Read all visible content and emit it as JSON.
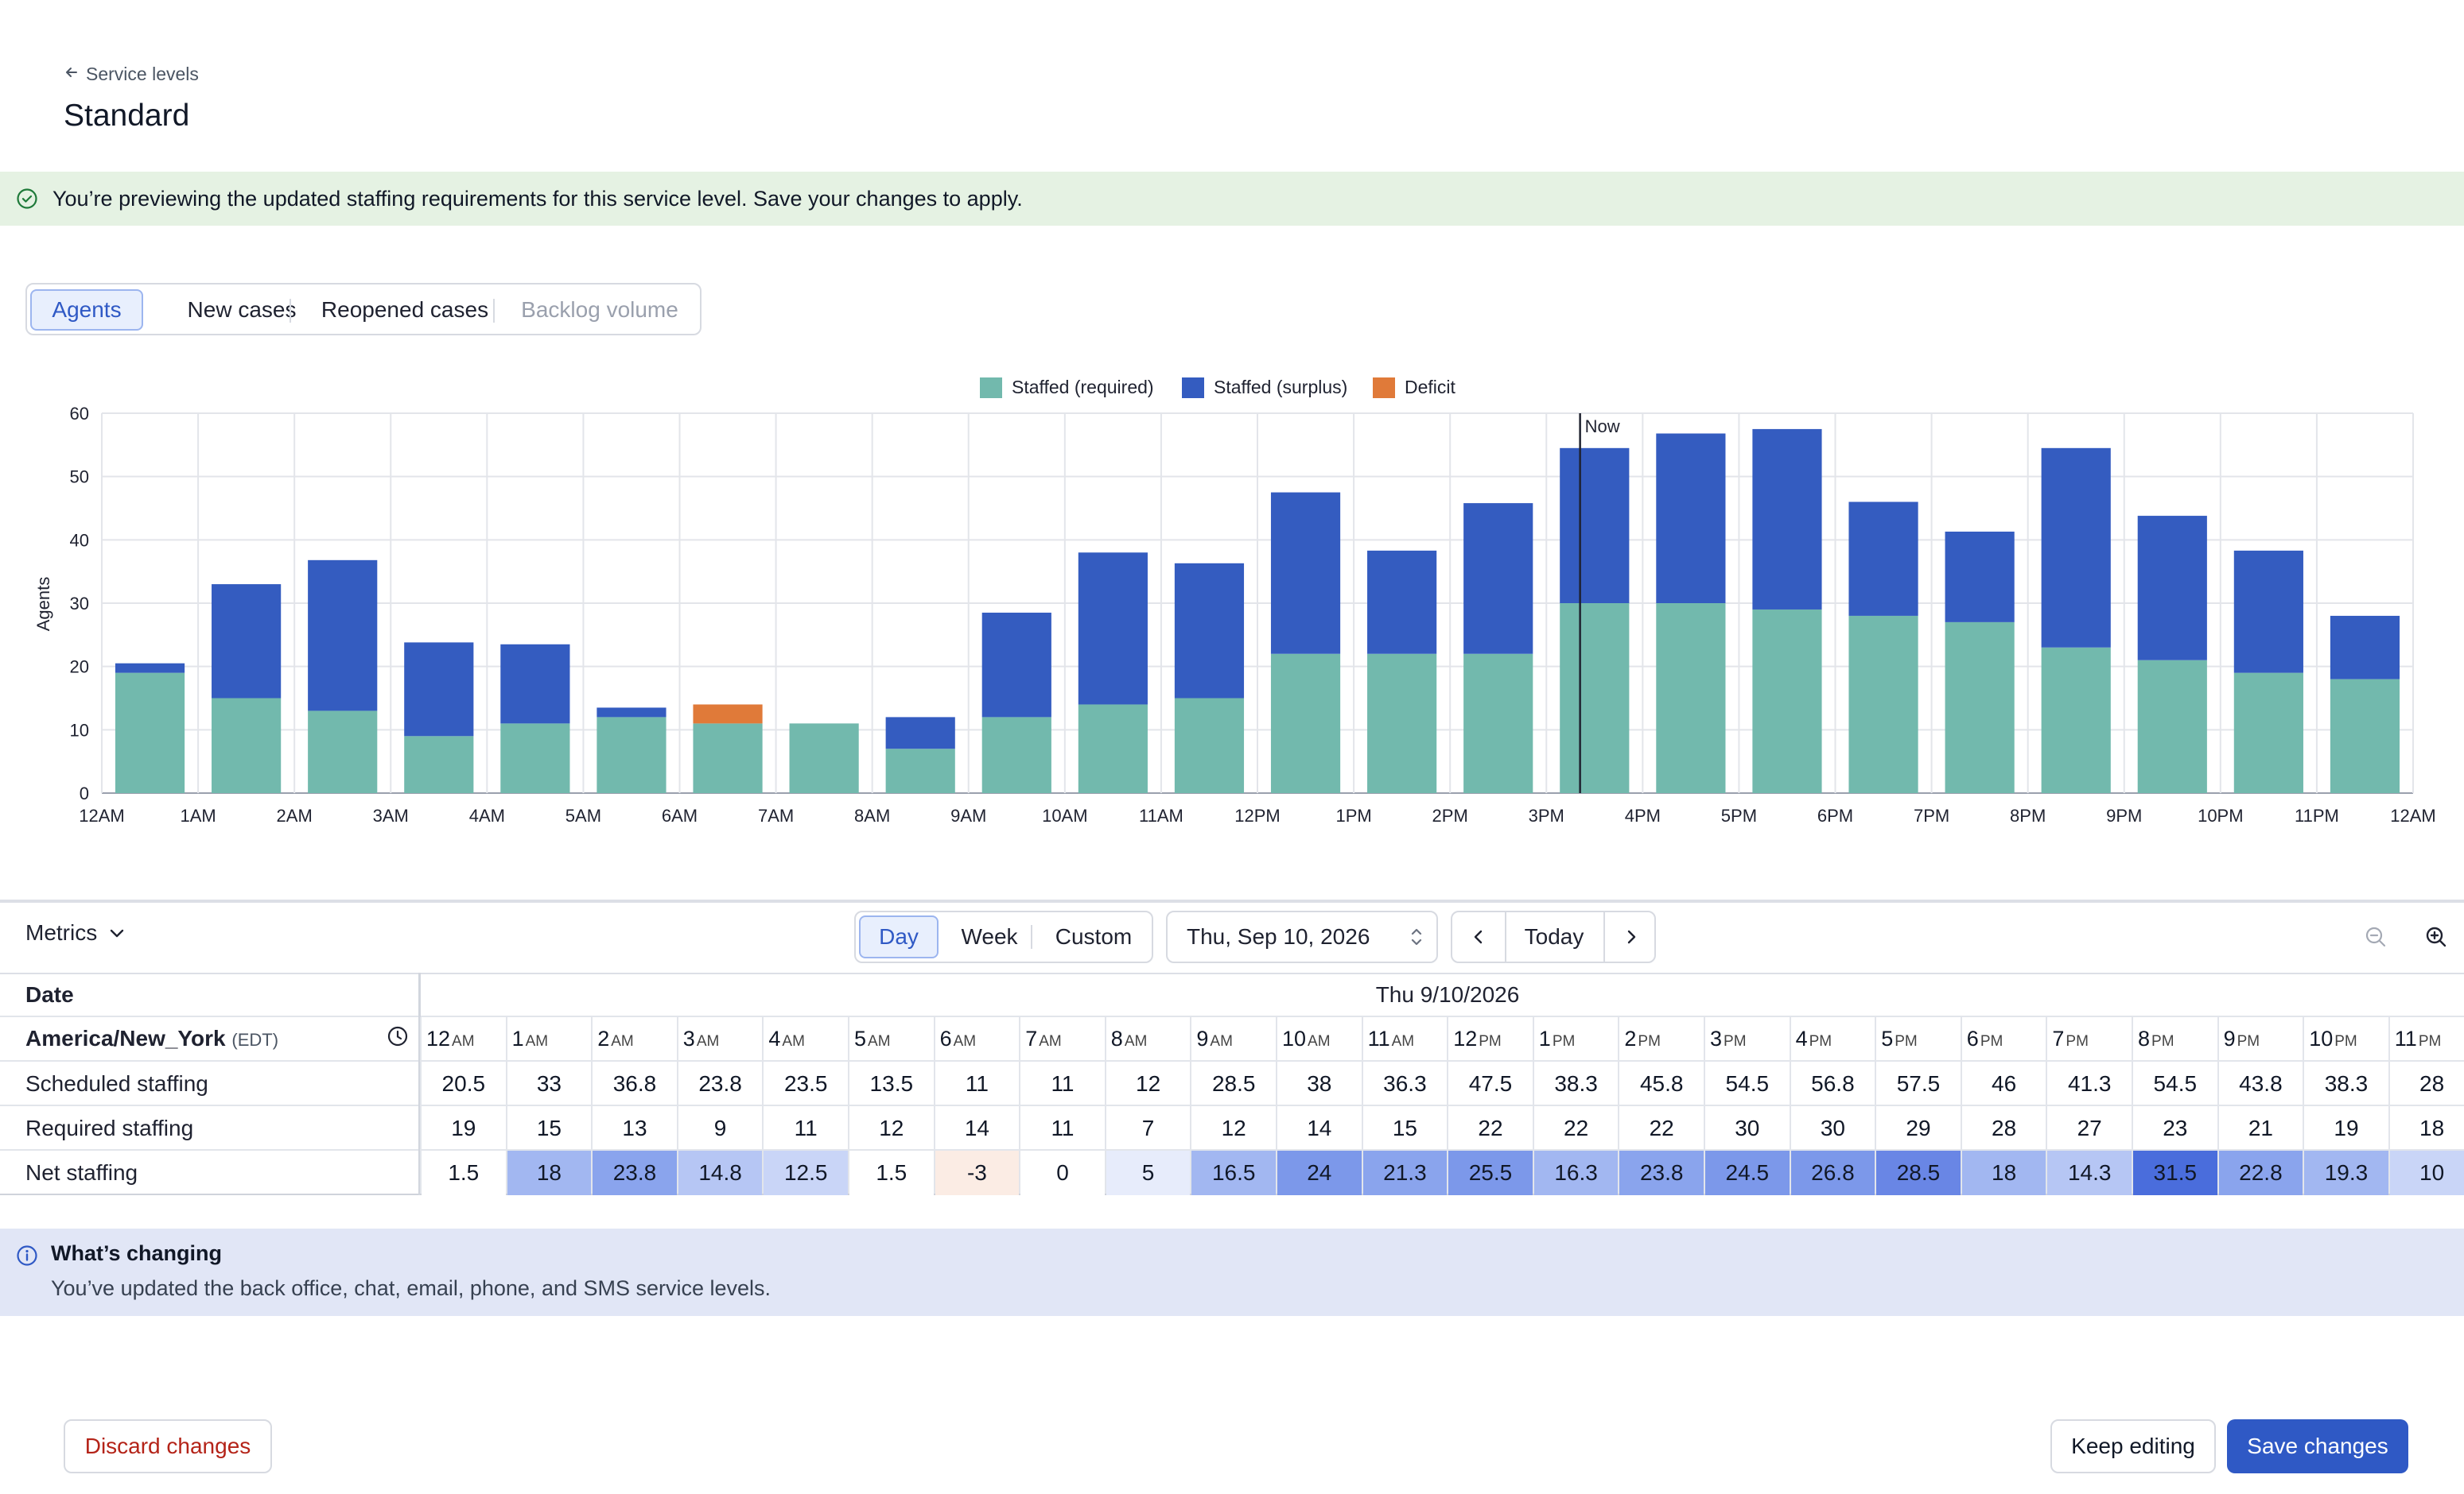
{
  "header": {
    "back_label": "Service levels",
    "title": "Standard"
  },
  "banner": {
    "text": "You’re previewing the updated staffing requirements for this service level. Save your changes to apply."
  },
  "tabs": [
    {
      "label": "Agents",
      "active": true
    },
    {
      "label": "New cases"
    },
    {
      "label": "Reopened cases"
    },
    {
      "label": "Backlog volume",
      "disabled": true
    }
  ],
  "colors": {
    "required": "#72b9ad",
    "surplus": "#345cc0",
    "deficit": "#e07a39",
    "accent": "#2f59c5"
  },
  "chart_data": {
    "type": "bar",
    "stacked": true,
    "ylabel": "Agents",
    "ylim": [
      0,
      60
    ],
    "yticks": [
      0,
      10,
      20,
      30,
      40,
      50,
      60
    ],
    "legend_position": "top-center",
    "grid": true,
    "now_label": "Now",
    "now_hour": 15.35,
    "xtick_labels": [
      "12AM",
      "1AM",
      "2AM",
      "3AM",
      "4AM",
      "5AM",
      "6AM",
      "7AM",
      "8AM",
      "9AM",
      "10AM",
      "11AM",
      "12PM",
      "1PM",
      "2PM",
      "3PM",
      "4PM",
      "5PM",
      "6PM",
      "7PM",
      "8PM",
      "9PM",
      "10PM",
      "11PM",
      "12AM"
    ],
    "categories": [
      "12AM",
      "1AM",
      "2AM",
      "3AM",
      "4AM",
      "5AM",
      "6AM",
      "7AM",
      "8AM",
      "9AM",
      "10AM",
      "11AM",
      "12PM",
      "1PM",
      "2PM",
      "3PM",
      "4PM",
      "5PM",
      "6PM",
      "7PM",
      "8PM",
      "9PM",
      "10PM",
      "11PM"
    ],
    "series": [
      {
        "name": "Staffed (required)",
        "values": [
          19,
          15,
          13,
          9,
          11,
          12,
          11,
          11,
          7,
          12,
          14,
          15,
          22,
          22,
          22,
          30,
          30,
          29,
          28,
          27,
          23,
          21,
          19,
          18
        ]
      },
      {
        "name": "Staffed (surplus)",
        "values": [
          1.5,
          18,
          23.8,
          14.8,
          12.5,
          1.5,
          0,
          0,
          5,
          16.5,
          24,
          21.3,
          25.5,
          16.3,
          23.8,
          24.5,
          26.8,
          28.5,
          18,
          14.3,
          31.5,
          22.8,
          19.3,
          10
        ]
      },
      {
        "name": "Deficit",
        "values": [
          0,
          0,
          0,
          0,
          0,
          0,
          3,
          0,
          0,
          0,
          0,
          0,
          0,
          0,
          0,
          0,
          0,
          0,
          0,
          0,
          0,
          0,
          0,
          0
        ]
      }
    ]
  },
  "toolbar": {
    "metrics_label": "Metrics",
    "range_options": [
      "Day",
      "Week",
      "Custom"
    ],
    "range_active": "Day",
    "date_value": "Thu, Sep 10, 2026",
    "today_label": "Today"
  },
  "table": {
    "date_header": "Date",
    "date_value": "Thu 9/10/2026",
    "timezone": "America/New_York",
    "tz_abbr": "(EDT)",
    "hours": [
      {
        "n": "12",
        "p": "AM"
      },
      {
        "n": "1",
        "p": "AM"
      },
      {
        "n": "2",
        "p": "AM"
      },
      {
        "n": "3",
        "p": "AM"
      },
      {
        "n": "4",
        "p": "AM"
      },
      {
        "n": "5",
        "p": "AM"
      },
      {
        "n": "6",
        "p": "AM"
      },
      {
        "n": "7",
        "p": "AM"
      },
      {
        "n": "8",
        "p": "AM"
      },
      {
        "n": "9",
        "p": "AM"
      },
      {
        "n": "10",
        "p": "AM"
      },
      {
        "n": "11",
        "p": "AM"
      },
      {
        "n": "12",
        "p": "PM"
      },
      {
        "n": "1",
        "p": "PM"
      },
      {
        "n": "2",
        "p": "PM"
      },
      {
        "n": "3",
        "p": "PM"
      },
      {
        "n": "4",
        "p": "PM"
      },
      {
        "n": "5",
        "p": "PM"
      },
      {
        "n": "6",
        "p": "PM"
      },
      {
        "n": "7",
        "p": "PM"
      },
      {
        "n": "8",
        "p": "PM"
      },
      {
        "n": "9",
        "p": "PM"
      },
      {
        "n": "10",
        "p": "PM"
      },
      {
        "n": "11",
        "p": "PM"
      }
    ],
    "rows": [
      {
        "label": "Scheduled staffing",
        "values": [
          "20.5",
          "33",
          "36.8",
          "23.8",
          "23.5",
          "13.5",
          "11",
          "11",
          "12",
          "28.5",
          "38",
          "36.3",
          "47.5",
          "38.3",
          "45.8",
          "54.5",
          "56.8",
          "57.5",
          "46",
          "41.3",
          "54.5",
          "43.8",
          "38.3",
          "28"
        ]
      },
      {
        "label": "Required staffing",
        "values": [
          "19",
          "15",
          "13",
          "9",
          "11",
          "12",
          "14",
          "11",
          "7",
          "12",
          "14",
          "15",
          "22",
          "22",
          "22",
          "30",
          "30",
          "29",
          "28",
          "27",
          "23",
          "21",
          "19",
          "18"
        ]
      },
      {
        "label": "Net staffing",
        "values": [
          "1.5",
          "18",
          "23.8",
          "14.8",
          "12.5",
          "1.5",
          "-3",
          "0",
          "5",
          "16.5",
          "24",
          "21.3",
          "25.5",
          "16.3",
          "23.8",
          "24.5",
          "26.8",
          "28.5",
          "18",
          "14.3",
          "31.5",
          "22.8",
          "19.3",
          "10"
        ],
        "heatmap": true
      }
    ]
  },
  "info": {
    "title": "What’s changing",
    "text": "You’ve updated the back office, chat, email, phone, and SMS service levels."
  },
  "footer": {
    "discard_label": "Discard changes",
    "keep_label": "Keep editing",
    "save_label": "Save changes"
  }
}
